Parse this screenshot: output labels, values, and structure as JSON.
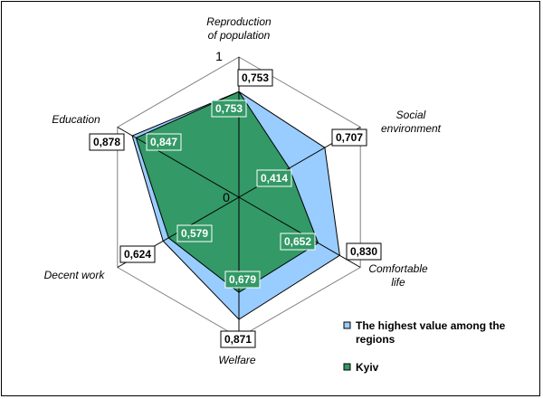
{
  "chart_data": {
    "type": "radar",
    "categories": [
      "Reproduction of population",
      "Social environment",
      "Comfortable life",
      "Welfare",
      "Decent work",
      "Education"
    ],
    "category_lines": [
      [
        "Reproduction",
        "of population"
      ],
      [
        "Social",
        "environment"
      ],
      [
        "Comfortable",
        "life"
      ],
      [
        "Welfare"
      ],
      [
        "Decent work"
      ],
      [
        "Education"
      ]
    ],
    "series": [
      {
        "name": "The highest value among the regions",
        "name_lines": [
          "The highest value among the",
          "regions"
        ],
        "values": [
          0.753,
          0.707,
          0.83,
          0.871,
          0.624,
          0.878
        ],
        "labels": [
          "0,753",
          "0,707",
          "0,830",
          "0,871",
          "0,624",
          "0,878"
        ],
        "color": "#99ccff"
      },
      {
        "name": "Kyiv",
        "name_lines": [
          "Kyiv"
        ],
        "values": [
          0.753,
          0.414,
          0.652,
          0.679,
          0.579,
          0.847
        ],
        "labels": [
          "0,753",
          "0,414",
          "0,652",
          "0,679",
          "0,579",
          "0,847"
        ],
        "color": "#339966"
      }
    ],
    "rmin": 0,
    "rmax": 1,
    "tick_labels": [
      "0",
      "1"
    ],
    "gridlines": 2,
    "legend": "bottom-right"
  }
}
